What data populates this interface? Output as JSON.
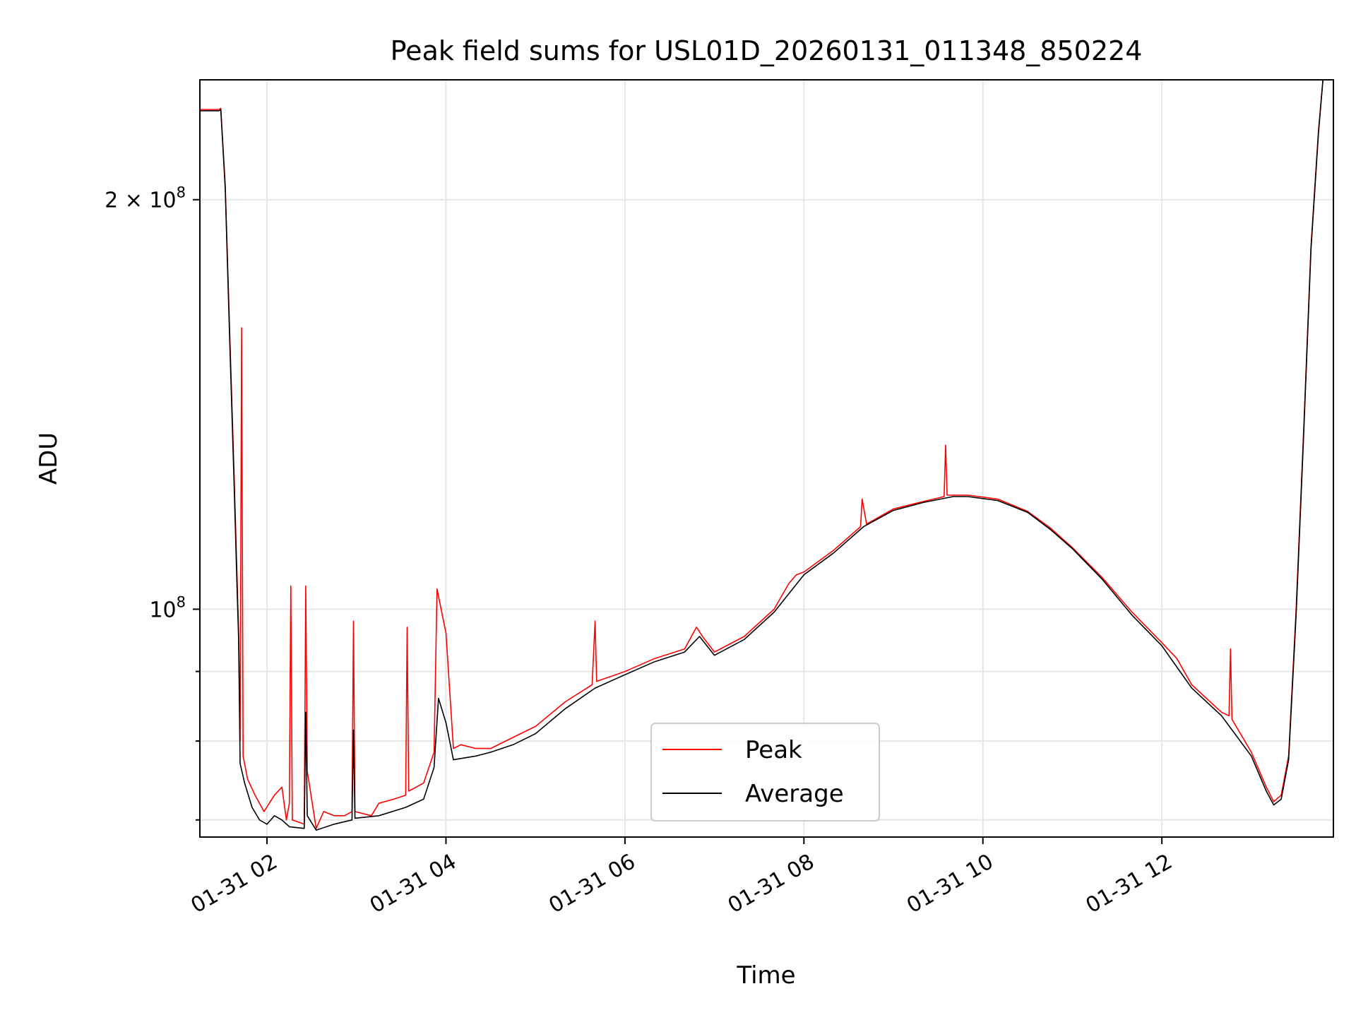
{
  "chart_data": {
    "type": "line",
    "title": "Peak field sums for USL01D_20260131_011348_850224",
    "xlabel": "Time",
    "ylabel": "ADU",
    "y_scale": "log",
    "ylim": [
      68000000,
      245000000
    ],
    "xlim": [
      "01-31 01:15",
      "01-31 13:55"
    ],
    "grid": true,
    "legend_position": "lower-center",
    "x_ticks": [
      {
        "value": "01-31 02:00",
        "label": "01-31 02"
      },
      {
        "value": "01-31 04:00",
        "label": "01-31 04"
      },
      {
        "value": "01-31 06:00",
        "label": "01-31 06"
      },
      {
        "value": "01-31 08:00",
        "label": "01-31 08"
      },
      {
        "value": "01-31 10:00",
        "label": "01-31 10"
      },
      {
        "value": "01-31 12:00",
        "label": "01-31 12"
      }
    ],
    "y_ticks": [
      {
        "value": 200000000,
        "mantissa": "2",
        "exponent": "8",
        "labeled": true
      },
      {
        "value": 100000000,
        "mantissa": "",
        "exponent": "8",
        "labeled": true
      },
      {
        "value": 90000000,
        "labeled": false
      },
      {
        "value": 80000000,
        "labeled": false
      },
      {
        "value": 70000000,
        "labeled": false
      }
    ],
    "series": [
      {
        "name": "Peak",
        "color": "#ff0000",
        "points": [
          [
            "01-31 01:15",
            233000000
          ],
          [
            "01-31 01:28",
            233000000
          ],
          [
            "01-31 01:29",
            233500000
          ],
          [
            "01-31 01:32",
            205000000
          ],
          [
            "01-31 01:35",
            160000000
          ],
          [
            "01-31 01:38",
            125000000
          ],
          [
            "01-31 01:40",
            105000000
          ],
          [
            "01-31 01:41",
            96000000
          ],
          [
            "01-31 01:42",
            80000000
          ],
          [
            "01-31 01:43",
            161000000
          ],
          [
            "01-31 01:44",
            78000000
          ],
          [
            "01-31 01:47",
            75000000
          ],
          [
            "01-31 01:52",
            73000000
          ],
          [
            "01-31 01:58",
            71000000
          ],
          [
            "01-31 02:05",
            73000000
          ],
          [
            "01-31 02:10",
            74000000
          ],
          [
            "01-31 02:13",
            70000000
          ],
          [
            "01-31 02:15",
            72000000
          ],
          [
            "01-31 02:16",
            104000000
          ],
          [
            "01-31 02:17",
            70000000
          ],
          [
            "01-31 02:25",
            69500000
          ],
          [
            "01-31 02:26",
            104000000
          ],
          [
            "01-31 02:27",
            76000000
          ],
          [
            "01-31 02:33",
            69000000
          ],
          [
            "01-31 02:38",
            71000000
          ],
          [
            "01-31 02:45",
            70500000
          ],
          [
            "01-31 02:52",
            70500000
          ],
          [
            "01-31 02:57",
            71000000
          ],
          [
            "01-31 02:58",
            98000000
          ],
          [
            "01-31 02:59",
            71000000
          ],
          [
            "01-31 03:10",
            70500000
          ],
          [
            "01-31 03:15",
            72000000
          ],
          [
            "01-31 03:25",
            72500000
          ],
          [
            "01-31 03:33",
            73000000
          ],
          [
            "01-31 03:34",
            97000000
          ],
          [
            "01-31 03:35",
            73500000
          ],
          [
            "01-31 03:45",
            74500000
          ],
          [
            "01-31 03:52",
            78500000
          ],
          [
            "01-31 03:54",
            103500000
          ],
          [
            "01-31 04:00",
            96000000
          ],
          [
            "01-31 04:05",
            79000000
          ],
          [
            "01-31 04:10",
            79500000
          ],
          [
            "01-31 04:20",
            79000000
          ],
          [
            "01-31 04:30",
            79000000
          ],
          [
            "01-31 04:45",
            80500000
          ],
          [
            "01-31 05:00",
            82000000
          ],
          [
            "01-31 05:20",
            85500000
          ],
          [
            "01-31 05:38",
            88000000
          ],
          [
            "01-31 05:40",
            98000000
          ],
          [
            "01-31 05:41",
            88500000
          ],
          [
            "01-31 06:00",
            90000000
          ],
          [
            "01-31 06:20",
            92000000
          ],
          [
            "01-31 06:40",
            93500000
          ],
          [
            "01-31 06:48",
            97000000
          ],
          [
            "01-31 06:52",
            95500000
          ],
          [
            "01-31 07:00",
            93000000
          ],
          [
            "01-31 07:20",
            95500000
          ],
          [
            "01-31 07:40",
            100000000
          ],
          [
            "01-31 07:50",
            104500000
          ],
          [
            "01-31 07:55",
            106000000
          ],
          [
            "01-31 08:00",
            106500000
          ],
          [
            "01-31 08:20",
            110500000
          ],
          [
            "01-31 08:38",
            115000000
          ],
          [
            "01-31 08:39",
            120500000
          ],
          [
            "01-31 08:42",
            115500000
          ],
          [
            "01-31 09:00",
            118500000
          ],
          [
            "01-31 09:20",
            120000000
          ],
          [
            "01-31 09:34",
            121000000
          ],
          [
            "01-31 09:35",
            132000000
          ],
          [
            "01-31 09:36",
            121300000
          ],
          [
            "01-31 09:50",
            121300000
          ],
          [
            "01-31 10:10",
            120500000
          ],
          [
            "01-31 10:30",
            118000000
          ],
          [
            "01-31 10:45",
            114800000
          ],
          [
            "01-31 11:00",
            111000000
          ],
          [
            "01-31 11:20",
            105500000
          ],
          [
            "01-31 11:40",
            99500000
          ],
          [
            "01-31 12:00",
            94500000
          ],
          [
            "01-31 12:10",
            92000000
          ],
          [
            "01-31 12:20",
            88000000
          ],
          [
            "01-31 12:40",
            84000000
          ],
          [
            "01-31 12:45",
            83500000
          ],
          [
            "01-31 12:46",
            93500000
          ],
          [
            "01-31 12:47",
            83000000
          ],
          [
            "01-31 13:00",
            78500000
          ],
          [
            "01-31 13:10",
            74000000
          ],
          [
            "01-31 13:15",
            72200000
          ],
          [
            "01-31 13:20",
            73000000
          ],
          [
            "01-31 13:25",
            78000000
          ],
          [
            "01-31 13:30",
            100000000
          ],
          [
            "01-31 13:35",
            135000000
          ],
          [
            "01-31 13:40",
            185000000
          ],
          [
            "01-31 13:45",
            225000000
          ],
          [
            "01-31 13:48",
            245000000
          ]
        ]
      },
      {
        "name": "Average",
        "color": "#000000",
        "points": [
          [
            "01-31 01:15",
            232500000
          ],
          [
            "01-31 01:28",
            232500000
          ],
          [
            "01-31 01:29",
            233000000
          ],
          [
            "01-31 01:32",
            204000000
          ],
          [
            "01-31 01:35",
            158000000
          ],
          [
            "01-31 01:38",
            123000000
          ],
          [
            "01-31 01:40",
            103000000
          ],
          [
            "01-31 01:41",
            95000000
          ],
          [
            "01-31 01:42",
            77000000
          ],
          [
            "01-31 01:45",
            74500000
          ],
          [
            "01-31 01:50",
            71500000
          ],
          [
            "01-31 01:55",
            70000000
          ],
          [
            "01-31 02:00",
            69500000
          ],
          [
            "01-31 02:05",
            70500000
          ],
          [
            "01-31 02:10",
            70000000
          ],
          [
            "01-31 02:15",
            69200000
          ],
          [
            "01-31 02:25",
            69000000
          ],
          [
            "01-31 02:26",
            84000000
          ],
          [
            "01-31 02:27",
            70500000
          ],
          [
            "01-31 02:33",
            68800000
          ],
          [
            "01-31 02:45",
            69500000
          ],
          [
            "01-31 02:57",
            70000000
          ],
          [
            "01-31 02:58",
            81500000
          ],
          [
            "01-31 02:59",
            70200000
          ],
          [
            "01-31 03:15",
            70500000
          ],
          [
            "01-31 03:33",
            71500000
          ],
          [
            "01-31 03:45",
            72500000
          ],
          [
            "01-31 03:52",
            76500000
          ],
          [
            "01-31 03:55",
            86000000
          ],
          [
            "01-31 04:00",
            82500000
          ],
          [
            "01-31 04:05",
            77500000
          ],
          [
            "01-31 04:20",
            78000000
          ],
          [
            "01-31 04:30",
            78500000
          ],
          [
            "01-31 04:45",
            79500000
          ],
          [
            "01-31 05:00",
            81000000
          ],
          [
            "01-31 05:20",
            84500000
          ],
          [
            "01-31 05:40",
            87500000
          ],
          [
            "01-31 06:00",
            89500000
          ],
          [
            "01-31 06:20",
            91500000
          ],
          [
            "01-31 06:40",
            93000000
          ],
          [
            "01-31 06:50",
            95500000
          ],
          [
            "01-31 07:00",
            92500000
          ],
          [
            "01-31 07:20",
            95000000
          ],
          [
            "01-31 07:40",
            99500000
          ],
          [
            "01-31 08:00",
            106000000
          ],
          [
            "01-31 08:20",
            110000000
          ],
          [
            "01-31 08:40",
            115000000
          ],
          [
            "01-31 09:00",
            118200000
          ],
          [
            "01-31 09:20",
            119800000
          ],
          [
            "01-31 09:40",
            121000000
          ],
          [
            "01-31 09:50",
            121000000
          ],
          [
            "01-31 10:10",
            120200000
          ],
          [
            "01-31 10:30",
            117800000
          ],
          [
            "01-31 10:45",
            114500000
          ],
          [
            "01-31 11:00",
            110800000
          ],
          [
            "01-31 11:20",
            105200000
          ],
          [
            "01-31 11:40",
            99000000
          ],
          [
            "01-31 12:00",
            94000000
          ],
          [
            "01-31 12:20",
            87500000
          ],
          [
            "01-31 12:40",
            83500000
          ],
          [
            "01-31 13:00",
            78000000
          ],
          [
            "01-31 13:10",
            73500000
          ],
          [
            "01-31 13:15",
            71800000
          ],
          [
            "01-31 13:20",
            72500000
          ],
          [
            "01-31 13:25",
            77500000
          ],
          [
            "01-31 13:30",
            99000000
          ],
          [
            "01-31 13:35",
            134000000
          ],
          [
            "01-31 13:40",
            184000000
          ],
          [
            "01-31 13:45",
            224000000
          ],
          [
            "01-31 13:48",
            245000000
          ]
        ]
      }
    ]
  }
}
